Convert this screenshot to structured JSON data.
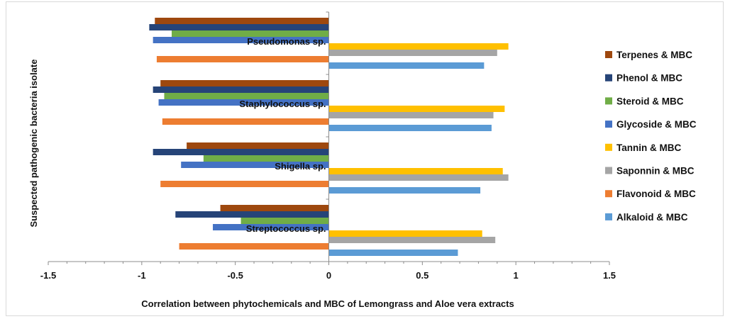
{
  "chart_data": {
    "type": "bar",
    "orientation": "horizontal",
    "xlabel": "Correlation between phytochemicals and MBC of Lemongrass and Aloe vera extracts",
    "ylabel": "Suspected pathogenic bacteria isolate",
    "xlim": [
      -1.5,
      1.5
    ],
    "xticks": [
      -1.5,
      -1,
      -0.5,
      0,
      0.5,
      1,
      1.5
    ],
    "xtick_labels": [
      "-1.5",
      "-1",
      "-0.5",
      "0",
      "0.5",
      "1",
      "1.5"
    ],
    "categories": [
      "Streptococcus sp.",
      "Shigella sp.",
      "Staphylococcus sp.",
      "Pseudomonas sp."
    ],
    "legend_position": "right",
    "grid": false,
    "series": [
      {
        "name": "Alkaloid & MBC",
        "color": "#5b9bd5",
        "values": [
          0.69,
          0.81,
          0.87,
          0.83
        ]
      },
      {
        "name": "Flavonoid & MBC",
        "color": "#ed7d31",
        "values": [
          -0.8,
          -0.9,
          -0.89,
          -0.92
        ]
      },
      {
        "name": "Saponnin & MBC",
        "color": "#a5a5a5",
        "values": [
          0.89,
          0.96,
          0.88,
          0.9
        ]
      },
      {
        "name": "Tannin & MBC",
        "color": "#ffc000",
        "values": [
          0.82,
          0.93,
          0.94,
          0.96
        ]
      },
      {
        "name": "Glycoside & MBC",
        "color": "#4472c4",
        "values": [
          -0.62,
          -0.79,
          -0.91,
          -0.94
        ]
      },
      {
        "name": "Steroid & MBC",
        "color": "#70ad47",
        "values": [
          -0.47,
          -0.67,
          -0.88,
          -0.84
        ]
      },
      {
        "name": "Phenol & MBC",
        "color": "#264478",
        "values": [
          -0.82,
          -0.94,
          -0.94,
          -0.96
        ]
      },
      {
        "name": "Terpenes & MBC",
        "color": "#9e480e",
        "values": [
          -0.58,
          -0.76,
          -0.9,
          -0.93
        ]
      }
    ]
  }
}
